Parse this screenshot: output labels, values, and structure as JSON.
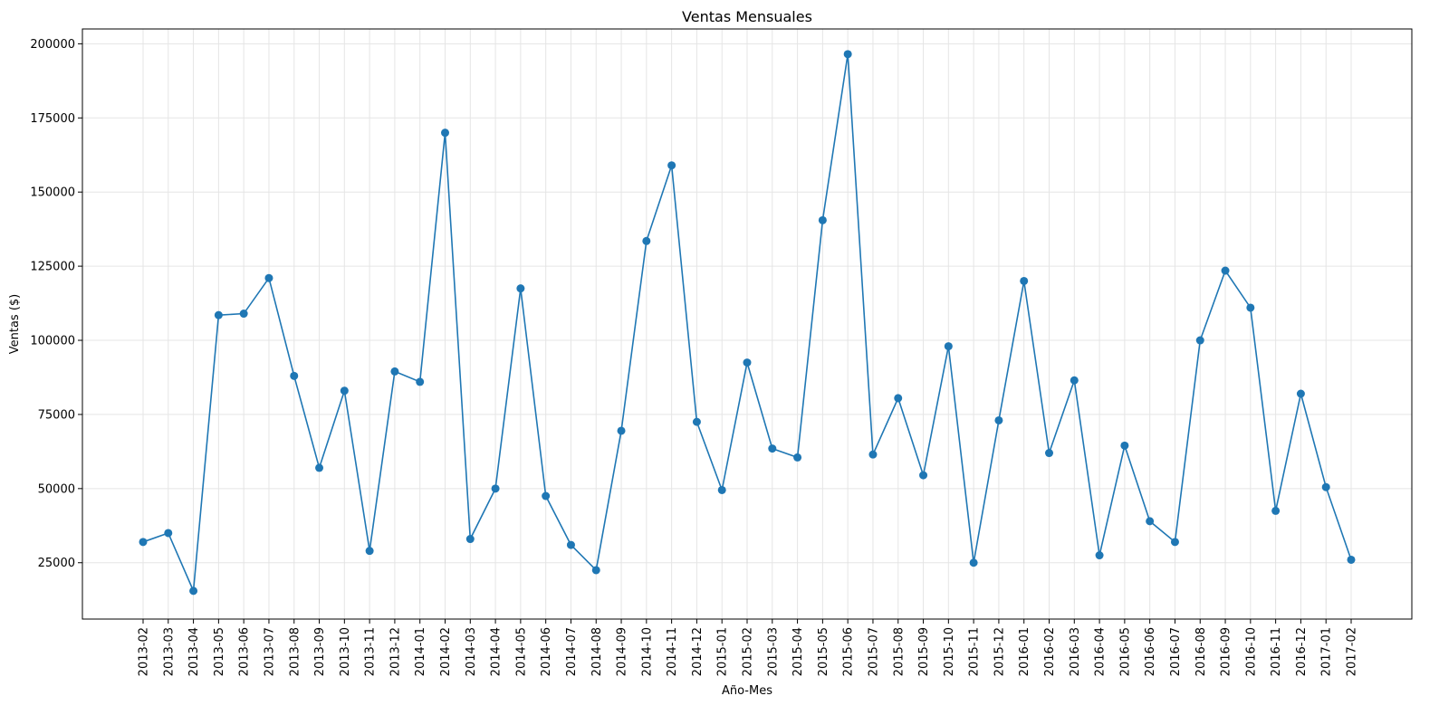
{
  "chart_data": {
    "type": "line",
    "title": "Ventas Mensuales",
    "xlabel": "Año-Mes",
    "ylabel": "Ventas ($)",
    "ylim": [
      6000,
      205000
    ],
    "yticks": [
      25000,
      50000,
      75000,
      100000,
      125000,
      150000,
      175000,
      200000
    ],
    "grid": true,
    "markers": true,
    "color": "#1f77b4",
    "categories": [
      "2013-02",
      "2013-03",
      "2013-04",
      "2013-05",
      "2013-06",
      "2013-07",
      "2013-08",
      "2013-09",
      "2013-10",
      "2013-11",
      "2013-12",
      "2014-01",
      "2014-02",
      "2014-03",
      "2014-04",
      "2014-05",
      "2014-06",
      "2014-07",
      "2014-08",
      "2014-09",
      "2014-10",
      "2014-11",
      "2014-12",
      "2015-01",
      "2015-02",
      "2015-03",
      "2015-04",
      "2015-05",
      "2015-06",
      "2015-07",
      "2015-08",
      "2015-09",
      "2015-10",
      "2015-11",
      "2015-12",
      "2016-01",
      "2016-02",
      "2016-03",
      "2016-04",
      "2016-05",
      "2016-06",
      "2016-07",
      "2016-08",
      "2016-09",
      "2016-10",
      "2016-11",
      "2016-12",
      "2017-01",
      "2017-02"
    ],
    "values": [
      32000,
      35000,
      15500,
      108500,
      109000,
      121000,
      88000,
      57000,
      83000,
      29000,
      89500,
      86000,
      170000,
      33000,
      50000,
      117500,
      47500,
      31000,
      22500,
      69500,
      133500,
      159000,
      72500,
      49500,
      92500,
      63500,
      60500,
      140500,
      196500,
      61500,
      80500,
      54500,
      98000,
      25000,
      73000,
      120000,
      62000,
      86500,
      27500,
      64500,
      39000,
      32000,
      100000,
      123500,
      111000,
      42500,
      82000,
      50500,
      26000
    ]
  }
}
